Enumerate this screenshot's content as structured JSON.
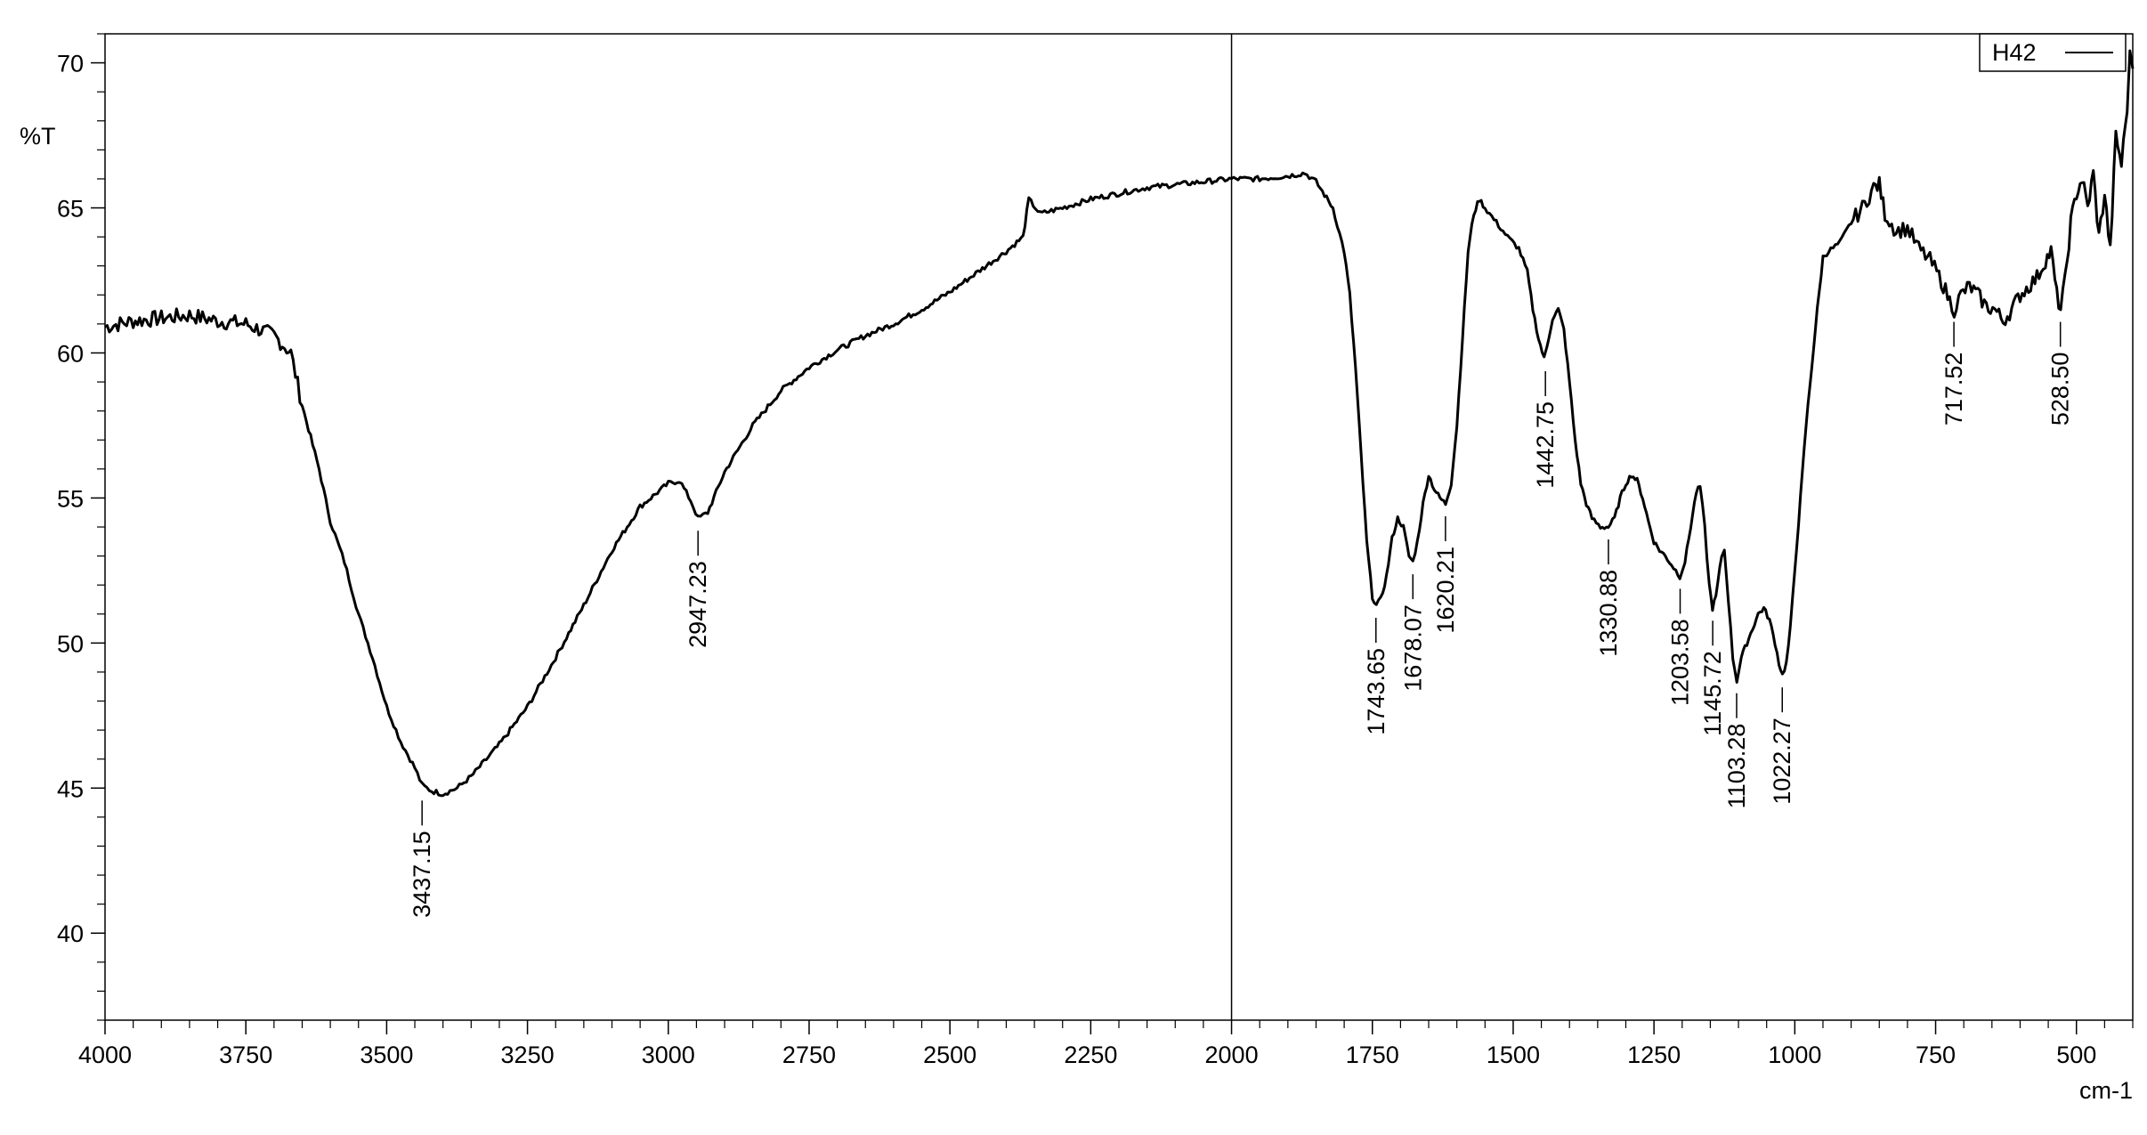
{
  "chart_data": {
    "type": "line",
    "title": "",
    "xlabel": "cm-1",
    "ylabel": "%T",
    "xlim": [
      4000,
      400
    ],
    "ylim": [
      37,
      71
    ],
    "x_reversed": true,
    "grid": false,
    "legend": {
      "placement": "top-right",
      "entries": [
        {
          "name": "H42"
        }
      ]
    },
    "x_ticks": [
      4000,
      3750,
      3500,
      3250,
      3000,
      2750,
      2500,
      2250,
      2000,
      1750,
      1500,
      1250,
      1000,
      750,
      500
    ],
    "x_tick_labels": [
      "4000",
      "3750",
      "3500",
      "3250",
      "3000",
      "2750",
      "2500",
      "2250",
      "2000",
      "1750",
      "1500",
      "1250",
      "1000",
      "750",
      "500"
    ],
    "y_ticks": [
      40,
      45,
      50,
      55,
      60,
      65,
      70
    ],
    "y_tick_labels": [
      "40",
      "45",
      "50",
      "55",
      "60",
      "65",
      "70"
    ],
    "vertical_marker": 2000,
    "series": [
      {
        "name": "H42",
        "color": "#000000",
        "points": [
          [
            4000,
            60.9
          ],
          [
            3950,
            61.1
          ],
          [
            3900,
            61.2
          ],
          [
            3850,
            61.3
          ],
          [
            3800,
            61.1
          ],
          [
            3750,
            61.0
          ],
          [
            3700,
            60.6
          ],
          [
            3670,
            60.0
          ],
          [
            3650,
            58.2
          ],
          [
            3620,
            56.0
          ],
          [
            3600,
            54.2
          ],
          [
            3575,
            52.8
          ],
          [
            3550,
            51.0
          ],
          [
            3525,
            49.5
          ],
          [
            3500,
            47.8
          ],
          [
            3475,
            46.6
          ],
          [
            3450,
            45.7
          ],
          [
            3437,
            45.1
          ],
          [
            3420,
            44.9
          ],
          [
            3400,
            44.8
          ],
          [
            3375,
            45.0
          ],
          [
            3350,
            45.4
          ],
          [
            3300,
            46.5
          ],
          [
            3250,
            47.8
          ],
          [
            3200,
            49.5
          ],
          [
            3150,
            51.3
          ],
          [
            3100,
            53.2
          ],
          [
            3050,
            54.7
          ],
          [
            3000,
            55.5
          ],
          [
            2980,
            55.6
          ],
          [
            2960,
            54.9
          ],
          [
            2947,
            54.3
          ],
          [
            2930,
            54.5
          ],
          [
            2900,
            55.9
          ],
          [
            2850,
            57.5
          ],
          [
            2800,
            58.7
          ],
          [
            2750,
            59.5
          ],
          [
            2700,
            60.1
          ],
          [
            2650,
            60.6
          ],
          [
            2600,
            61.0
          ],
          [
            2550,
            61.5
          ],
          [
            2500,
            62.1
          ],
          [
            2450,
            62.8
          ],
          [
            2400,
            63.5
          ],
          [
            2370,
            64.0
          ],
          [
            2360,
            65.3
          ],
          [
            2340,
            64.8
          ],
          [
            2300,
            65.0
          ],
          [
            2250,
            65.3
          ],
          [
            2200,
            65.5
          ],
          [
            2150,
            65.7
          ],
          [
            2100,
            65.8
          ],
          [
            2050,
            65.9
          ],
          [
            2000,
            66.0
          ],
          [
            1950,
            66.0
          ],
          [
            1900,
            66.1
          ],
          [
            1870,
            66.2
          ],
          [
            1850,
            65.9
          ],
          [
            1820,
            65.0
          ],
          [
            1800,
            63.5
          ],
          [
            1790,
            62.0
          ],
          [
            1780,
            59.5
          ],
          [
            1770,
            56.5
          ],
          [
            1760,
            53.5
          ],
          [
            1750,
            51.6
          ],
          [
            1743,
            51.3
          ],
          [
            1735,
            51.5
          ],
          [
            1725,
            52.3
          ],
          [
            1715,
            53.6
          ],
          [
            1705,
            54.3
          ],
          [
            1695,
            54.0
          ],
          [
            1685,
            53.0
          ],
          [
            1678,
            52.8
          ],
          [
            1670,
            53.5
          ],
          [
            1660,
            54.8
          ],
          [
            1650,
            55.8
          ],
          [
            1640,
            55.3
          ],
          [
            1630,
            55.0
          ],
          [
            1620,
            54.8
          ],
          [
            1610,
            55.5
          ],
          [
            1600,
            57.5
          ],
          [
            1590,
            60.5
          ],
          [
            1580,
            63.5
          ],
          [
            1570,
            64.8
          ],
          [
            1560,
            65.3
          ],
          [
            1550,
            65.0
          ],
          [
            1530,
            64.5
          ],
          [
            1510,
            64.0
          ],
          [
            1490,
            63.6
          ],
          [
            1475,
            62.8
          ],
          [
            1465,
            61.5
          ],
          [
            1455,
            60.5
          ],
          [
            1445,
            59.8
          ],
          [
            1440,
            60.2
          ],
          [
            1430,
            61.2
          ],
          [
            1420,
            61.5
          ],
          [
            1410,
            60.8
          ],
          [
            1400,
            59.0
          ],
          [
            1390,
            57.0
          ],
          [
            1380,
            55.5
          ],
          [
            1370,
            54.8
          ],
          [
            1360,
            54.3
          ],
          [
            1345,
            54.0
          ],
          [
            1331,
            54.0
          ],
          [
            1320,
            54.3
          ],
          [
            1310,
            55.0
          ],
          [
            1300,
            55.5
          ],
          [
            1290,
            55.8
          ],
          [
            1280,
            55.6
          ],
          [
            1270,
            55.0
          ],
          [
            1260,
            54.2
          ],
          [
            1250,
            53.5
          ],
          [
            1240,
            53.2
          ],
          [
            1230,
            53.0
          ],
          [
            1215,
            52.6
          ],
          [
            1204,
            52.3
          ],
          [
            1195,
            52.8
          ],
          [
            1185,
            54.0
          ],
          [
            1175,
            55.2
          ],
          [
            1168,
            55.4
          ],
          [
            1160,
            54.0
          ],
          [
            1152,
            52.0
          ],
          [
            1146,
            51.2
          ],
          [
            1140,
            51.6
          ],
          [
            1130,
            53.0
          ],
          [
            1125,
            53.2
          ],
          [
            1118,
            51.5
          ],
          [
            1110,
            49.5
          ],
          [
            1103,
            48.7
          ],
          [
            1095,
            49.5
          ],
          [
            1085,
            50.0
          ],
          [
            1075,
            50.5
          ],
          [
            1065,
            51.0
          ],
          [
            1055,
            51.2
          ],
          [
            1045,
            50.8
          ],
          [
            1035,
            50.0
          ],
          [
            1028,
            49.3
          ],
          [
            1022,
            48.9
          ],
          [
            1015,
            49.3
          ],
          [
            1008,
            50.5
          ],
          [
            1000,
            52.5
          ],
          [
            990,
            55.0
          ],
          [
            980,
            57.5
          ],
          [
            970,
            59.5
          ],
          [
            960,
            61.5
          ],
          [
            950,
            63.3
          ],
          [
            940,
            63.5
          ],
          [
            920,
            63.8
          ],
          [
            900,
            64.5
          ],
          [
            880,
            65.0
          ],
          [
            860,
            65.7
          ],
          [
            850,
            65.8
          ],
          [
            840,
            64.8
          ],
          [
            820,
            64.2
          ],
          [
            800,
            64.3
          ],
          [
            780,
            63.6
          ],
          [
            760,
            63.2
          ],
          [
            740,
            62.5
          ],
          [
            725,
            61.8
          ],
          [
            717,
            61.5
          ],
          [
            705,
            62.0
          ],
          [
            690,
            62.3
          ],
          [
            675,
            62.0
          ],
          [
            660,
            61.6
          ],
          [
            645,
            61.5
          ],
          [
            630,
            61.1
          ],
          [
            615,
            61.5
          ],
          [
            600,
            62.0
          ],
          [
            585,
            62.3
          ],
          [
            570,
            62.6
          ],
          [
            555,
            63.2
          ],
          [
            545,
            63.5
          ],
          [
            535,
            62.0
          ],
          [
            528,
            61.5
          ],
          [
            520,
            62.5
          ],
          [
            510,
            64.5
          ],
          [
            500,
            65.5
          ],
          [
            490,
            66.0
          ],
          [
            480,
            65.0
          ],
          [
            470,
            66.2
          ],
          [
            460,
            64.0
          ],
          [
            450,
            65.5
          ],
          [
            440,
            63.5
          ],
          [
            430,
            67.5
          ],
          [
            420,
            66.5
          ],
          [
            410,
            68.5
          ],
          [
            405,
            70.2
          ],
          [
            400,
            69.8
          ]
        ]
      }
    ],
    "peak_labels": [
      {
        "x": 3437.15,
        "y": 45.0,
        "label": "3437.15",
        "placement": "below"
      },
      {
        "x": 2947.23,
        "y": 54.3,
        "label": "2947.23",
        "placement": "below"
      },
      {
        "x": 1743.65,
        "y": 51.3,
        "label": "1743.65",
        "placement": "below"
      },
      {
        "x": 1678.07,
        "y": 52.8,
        "label": "1678.07",
        "placement": "below"
      },
      {
        "x": 1620.21,
        "y": 54.8,
        "label": "1620.21",
        "placement": "below"
      },
      {
        "x": 1442.75,
        "y": 59.8,
        "label": "1442.75",
        "placement": "below"
      },
      {
        "x": 1330.88,
        "y": 54.0,
        "label": "1330.88",
        "placement": "below"
      },
      {
        "x": 1203.58,
        "y": 52.3,
        "label": "1203.58",
        "placement": "below"
      },
      {
        "x": 1145.72,
        "y": 51.2,
        "label": "1145.72",
        "placement": "below"
      },
      {
        "x": 1103.28,
        "y": 48.7,
        "label": "1103.28",
        "placement": "below"
      },
      {
        "x": 1022.27,
        "y": 48.9,
        "label": "1022.27",
        "placement": "below"
      },
      {
        "x": 717.52,
        "y": 61.5,
        "label": "717.52",
        "placement": "below"
      },
      {
        "x": 528.5,
        "y": 61.5,
        "label": "528.50",
        "placement": "below"
      }
    ]
  }
}
